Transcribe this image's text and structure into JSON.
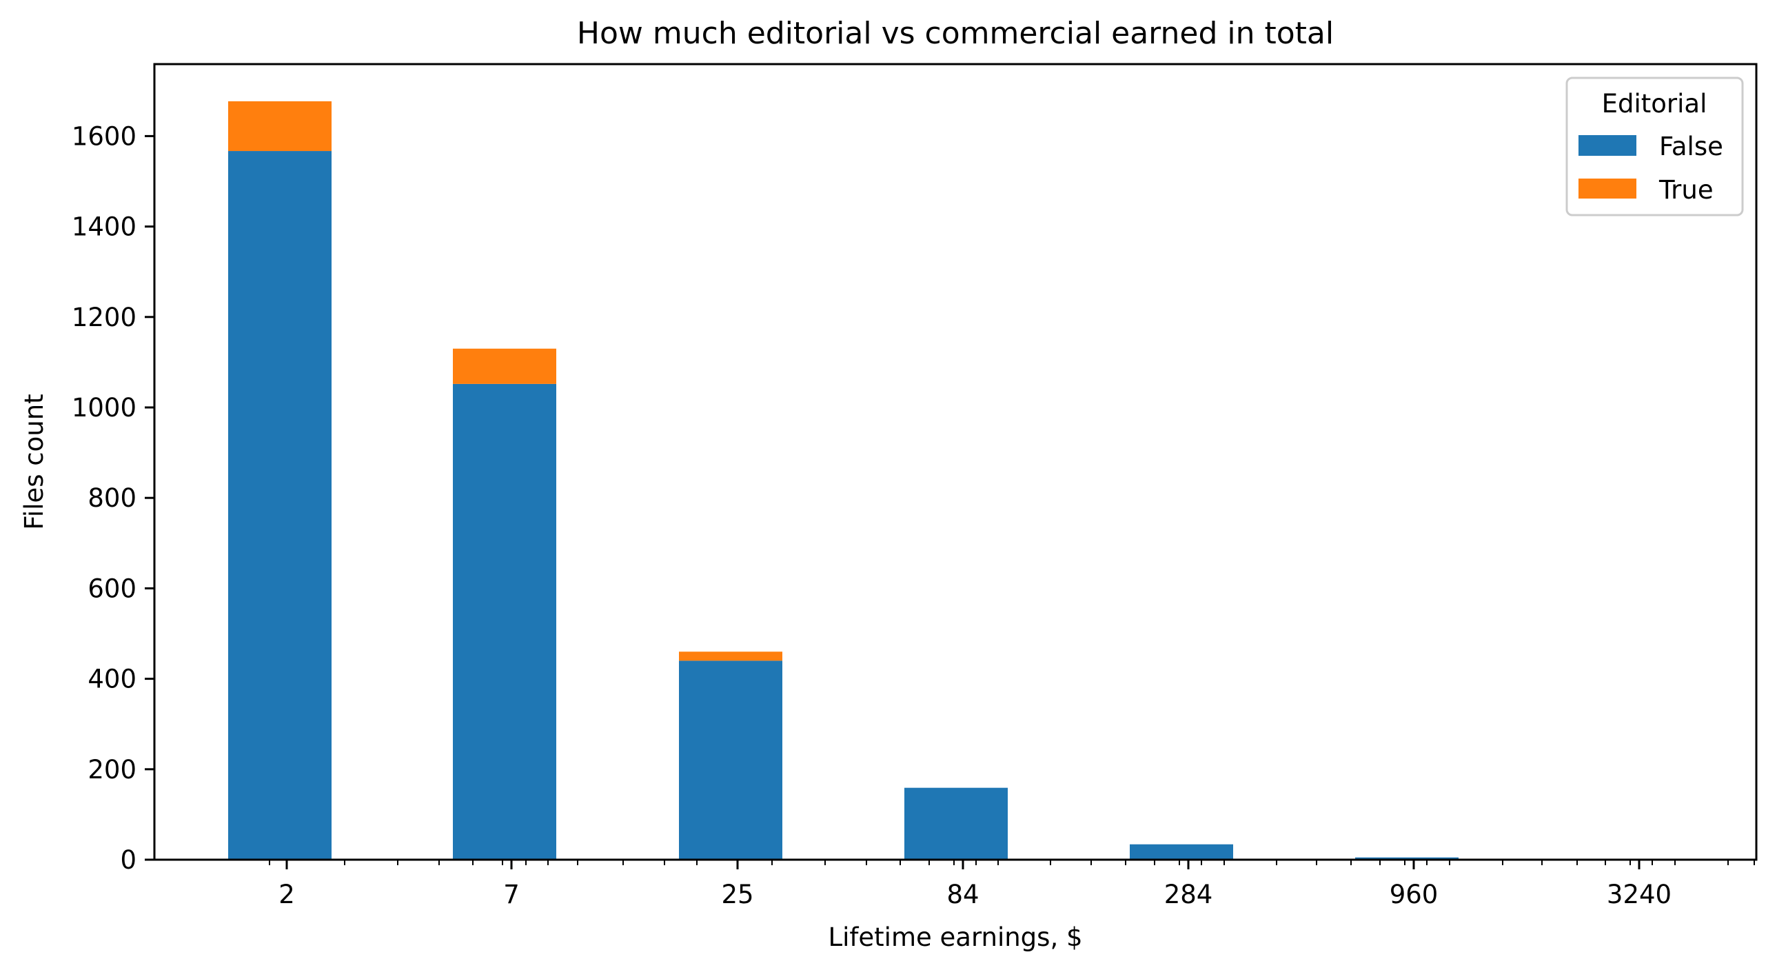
{
  "chart_data": {
    "type": "bar",
    "stacked": true,
    "title": "How much editorial vs commercial earned in total",
    "xlabel": "Lifetime earnings, $",
    "ylabel": "Files count",
    "categories": [
      "2",
      "7",
      "25",
      "84",
      "284",
      "960",
      "3240"
    ],
    "series": [
      {
        "name": "False",
        "color": "#1f77b4",
        "values": [
          1567,
          1052,
          440,
          159,
          34,
          5,
          0
        ]
      },
      {
        "name": "True",
        "color": "#ff7f0e",
        "values": [
          110,
          78,
          20,
          0,
          0,
          0,
          0
        ]
      }
    ],
    "totals": [
      1677,
      1130,
      460,
      159,
      34,
      5,
      0
    ],
    "ylim": [
      0,
      1760
    ],
    "yticks": [
      0,
      200,
      400,
      600,
      800,
      1000,
      1200,
      1400,
      1600
    ],
    "xscale": "log",
    "grid": false,
    "legend": {
      "title": "Editorial",
      "position": "upper right",
      "entries": [
        "False",
        "True"
      ]
    }
  },
  "labels": {
    "title": "How much editorial vs commercial earned in total",
    "xlabel": "Lifetime earnings, $",
    "ylabel": "Files count",
    "legend_title": "Editorial",
    "legend_false": "False",
    "legend_true": "True",
    "yticks": [
      "0",
      "200",
      "400",
      "600",
      "800",
      "1000",
      "1200",
      "1400",
      "1600"
    ],
    "xticks": [
      "2",
      "7",
      "25",
      "84",
      "284",
      "960",
      "3240"
    ]
  }
}
